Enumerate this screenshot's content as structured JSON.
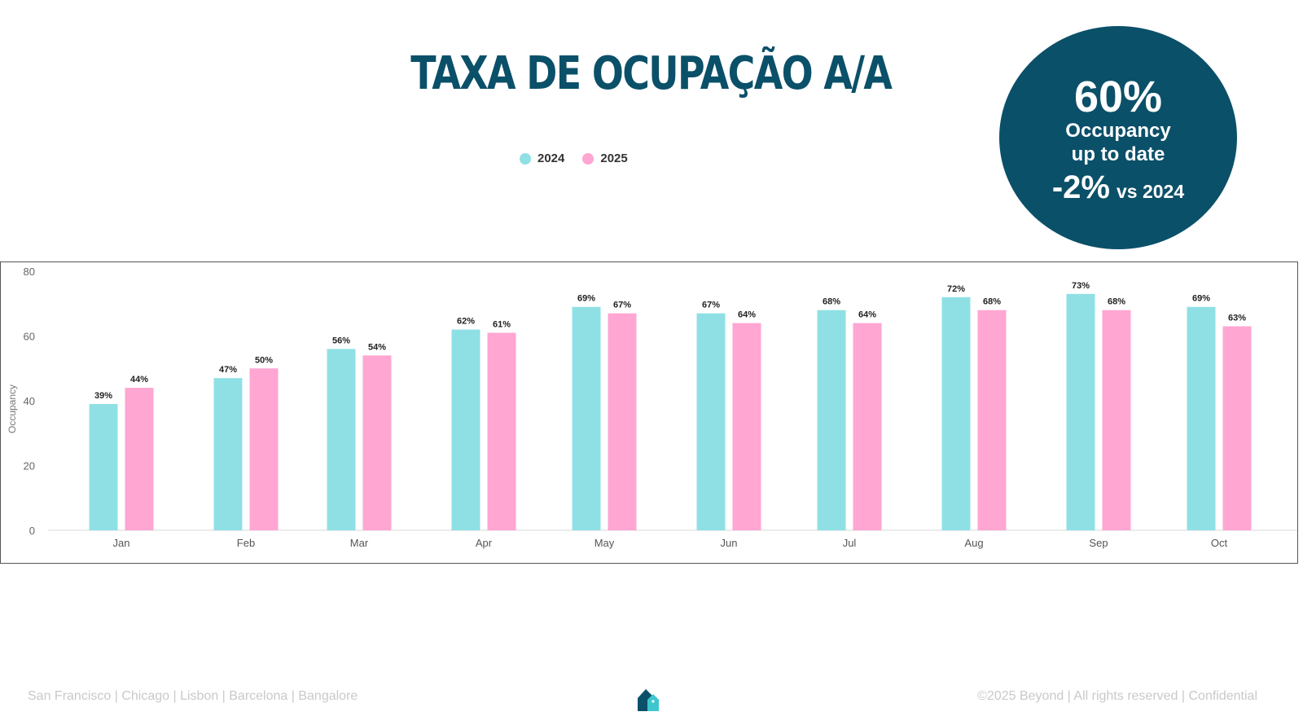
{
  "title": "TAXA DE OCUPAÇÃO A/A",
  "kpi": {
    "value": "60%",
    "line1": "Occupancy",
    "line2": "up to date",
    "delta": "-2%",
    "delta_suffix": "vs 2024"
  },
  "colors": {
    "brand": "#0b5069",
    "series_2024": "#8fe0e4",
    "series_2025": "#ffa6d2"
  },
  "chart_data": {
    "type": "bar",
    "title": "TAXA DE OCUPAÇÃO A/A",
    "xlabel": "",
    "ylabel": "Occupancy",
    "ylim": [
      0,
      80
    ],
    "yticks": [
      0,
      20,
      40,
      60,
      80
    ],
    "grid": false,
    "legend": "top-center",
    "categories": [
      "Jan",
      "Feb",
      "Mar",
      "Apr",
      "May",
      "Jun",
      "Jul",
      "Aug",
      "Sep",
      "Oct"
    ],
    "series": [
      {
        "name": "2024",
        "values": [
          39,
          47,
          56,
          62,
          69,
          67,
          68,
          72,
          73,
          69
        ],
        "labels": [
          "39%",
          "47%",
          "56%",
          "62%",
          "69%",
          "67%",
          "68%",
          "72%",
          "73%",
          "69%"
        ]
      },
      {
        "name": "2025",
        "values": [
          44,
          50,
          54,
          61,
          67,
          64,
          64,
          68,
          68,
          63
        ],
        "labels": [
          "44%",
          "50%",
          "54%",
          "61%",
          "67%",
          "64%",
          "64%",
          "68%",
          "68%",
          "63%"
        ]
      }
    ]
  },
  "footer": {
    "left": "San Francisco | Chicago | Lisbon | Barcelona | Bangalore",
    "right": "©2025 Beyond | All rights reserved | Confidential"
  }
}
